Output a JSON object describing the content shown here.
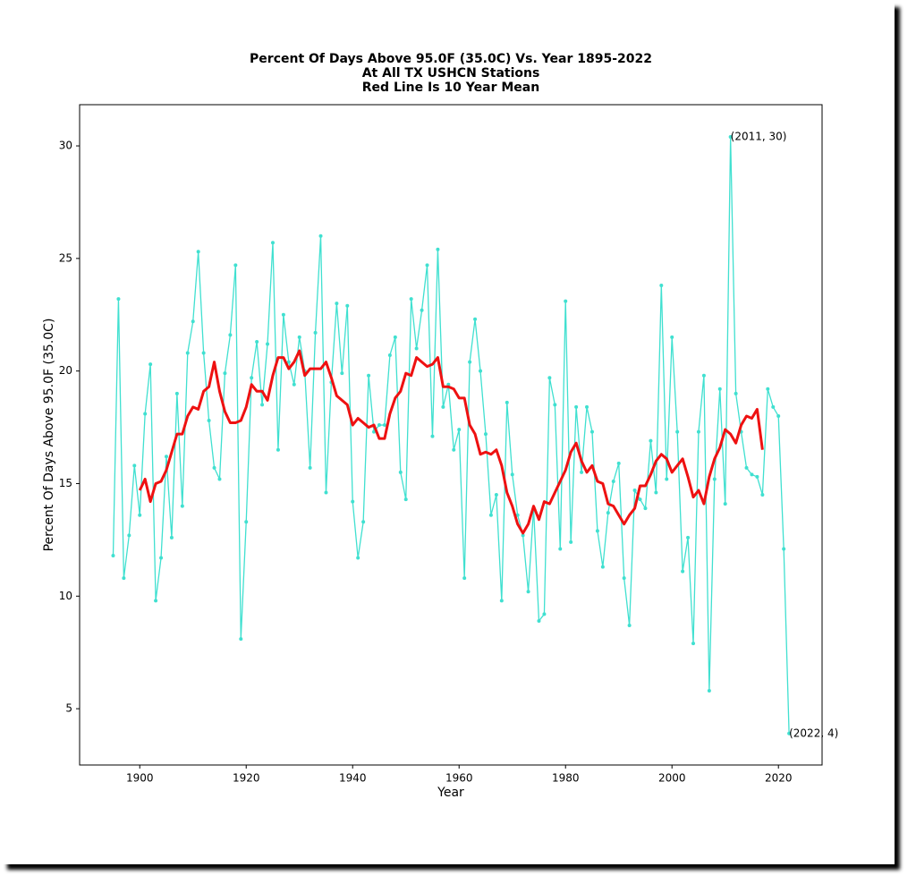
{
  "chart_data": {
    "type": "line",
    "title": [
      "Percent Of Days Above 95.0F (35.0C) Vs. Year 1895-2022",
      "At All TX USHCN Stations",
      "Red Line Is 10 Year Mean"
    ],
    "x_label": "Year",
    "y_label": "Percent Of Days Above 95.0F (35.0C)",
    "x": [
      1895,
      1896,
      1897,
      1898,
      1899,
      1900,
      1901,
      1902,
      1903,
      1904,
      1905,
      1906,
      1907,
      1908,
      1909,
      1910,
      1911,
      1912,
      1913,
      1914,
      1915,
      1916,
      1917,
      1918,
      1919,
      1920,
      1921,
      1922,
      1923,
      1924,
      1925,
      1926,
      1927,
      1928,
      1929,
      1930,
      1931,
      1932,
      1933,
      1934,
      1935,
      1936,
      1937,
      1938,
      1939,
      1940,
      1941,
      1942,
      1943,
      1944,
      1945,
      1946,
      1947,
      1948,
      1949,
      1950,
      1951,
      1952,
      1953,
      1954,
      1955,
      1956,
      1957,
      1958,
      1959,
      1960,
      1961,
      1962,
      1963,
      1964,
      1965,
      1966,
      1967,
      1968,
      1969,
      1970,
      1971,
      1972,
      1973,
      1974,
      1975,
      1976,
      1977,
      1978,
      1979,
      1980,
      1981,
      1982,
      1983,
      1984,
      1985,
      1986,
      1987,
      1988,
      1989,
      1990,
      1991,
      1992,
      1993,
      1994,
      1995,
      1996,
      1997,
      1998,
      1999,
      2000,
      2001,
      2002,
      2003,
      2004,
      2005,
      2006,
      2007,
      2008,
      2009,
      2010,
      2011,
      2012,
      2013,
      2014,
      2015,
      2016,
      2017,
      2018,
      2019,
      2020,
      2021,
      2022
    ],
    "series": [
      {
        "color": "#40e0d0",
        "markers": true,
        "width": 1.3,
        "values": [
          11.8,
          23.2,
          10.8,
          12.7,
          15.8,
          13.6,
          18.1,
          20.3,
          9.8,
          11.7,
          16.2,
          12.6,
          19.0,
          14.0,
          20.8,
          22.2,
          25.3,
          20.8,
          17.8,
          15.7,
          15.2,
          19.9,
          21.6,
          24.7,
          8.1,
          13.3,
          19.7,
          21.3,
          18.5,
          21.2,
          25.7,
          16.5,
          22.5,
          20.4,
          19.4,
          21.5,
          20.0,
          15.7,
          21.7,
          26.0,
          14.6,
          19.5,
          23.0,
          19.9,
          22.9,
          14.2,
          11.7,
          13.3,
          19.8,
          17.3,
          17.6,
          17.6,
          20.7,
          21.5,
          15.5,
          14.3,
          23.2,
          21.0,
          22.7,
          24.7,
          17.1,
          25.4,
          18.4,
          19.4,
          16.5,
          17.4,
          10.8,
          20.4,
          22.3,
          20.0,
          17.2,
          13.6,
          14.5,
          9.8,
          18.6,
          15.4,
          13.6,
          12.7,
          10.2,
          13.9,
          8.9,
          9.2,
          19.7,
          18.5,
          12.1,
          23.1,
          12.4,
          18.4,
          15.5,
          18.4,
          17.3,
          12.9,
          11.3,
          13.7,
          15.1,
          15.9,
          10.8,
          8.7,
          14.7,
          14.3,
          13.9,
          16.9,
          14.6,
          23.8,
          15.2,
          21.5,
          17.3,
          11.1,
          12.6,
          7.9,
          17.3,
          19.8,
          5.8,
          15.2,
          19.2,
          14.1,
          30.4,
          19.0,
          17.3,
          15.7,
          15.4,
          15.3,
          14.5,
          19.2,
          18.4,
          18.0,
          12.1,
          3.9
        ]
      },
      {
        "color": "#ee1111",
        "markers": false,
        "width": 3,
        "values": [
          null,
          null,
          null,
          null,
          null,
          14.7,
          15.2,
          14.2,
          15.0,
          15.1,
          15.6,
          16.4,
          17.2,
          17.2,
          18.0,
          18.4,
          18.3,
          19.1,
          19.3,
          20.4,
          19.1,
          18.2,
          17.7,
          17.7,
          17.8,
          18.4,
          19.4,
          19.1,
          19.1,
          18.7,
          19.8,
          20.6,
          20.6,
          20.1,
          20.4,
          20.9,
          19.8,
          20.1,
          20.1,
          20.1,
          20.4,
          19.7,
          18.9,
          18.7,
          18.5,
          17.6,
          17.9,
          17.7,
          17.5,
          17.6,
          17.0,
          17.0,
          18.1,
          18.8,
          19.1,
          19.9,
          19.8,
          20.6,
          20.4,
          20.2,
          20.3,
          20.6,
          19.3,
          19.3,
          19.2,
          18.8,
          18.8,
          17.6,
          17.2,
          16.3,
          16.4,
          16.3,
          16.5,
          15.8,
          14.6,
          14.0,
          13.2,
          12.8,
          13.2,
          14.0,
          13.4,
          14.2,
          14.1,
          14.6,
          15.1,
          15.6,
          16.4,
          16.8,
          16.0,
          15.5,
          15.8,
          15.1,
          15.0,
          14.1,
          14.0,
          13.6,
          13.2,
          13.6,
          13.9,
          14.9,
          14.9,
          15.4,
          16.0,
          16.3,
          16.1,
          15.5,
          15.8,
          16.1,
          15.3,
          14.4,
          14.7,
          14.1,
          15.3,
          16.1,
          16.6,
          17.4,
          17.2,
          16.8,
          17.6,
          18.0,
          17.9,
          18.3,
          16.5,
          null,
          null,
          null,
          null,
          null
        ]
      }
    ],
    "annotations": [
      {
        "text": "(2011, 30)",
        "x": 2011,
        "y": 30.4
      },
      {
        "text": "(2022, 4)",
        "x": 2022,
        "y": 3.9
      }
    ],
    "xlim": [
      1888.7,
      2028.2
    ],
    "ylim": [
      2.5,
      31.83
    ],
    "xticks": [
      1900,
      1920,
      1940,
      1960,
      1980,
      2000,
      2020
    ],
    "yticks": [
      5,
      10,
      15,
      20,
      25,
      30
    ]
  }
}
